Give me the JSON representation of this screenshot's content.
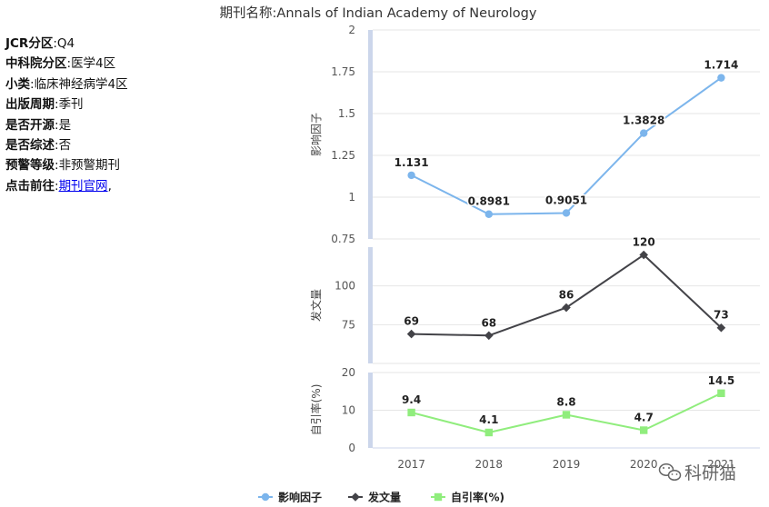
{
  "journal": {
    "title_label": "期刊名称:",
    "title_value": "Annals of Indian Academy of Neurology"
  },
  "info": [
    {
      "key": "JCR分区",
      "value": "Q4"
    },
    {
      "key": "中科院分区",
      "value": "医学4区"
    },
    {
      "key": "小类",
      "value": "临床神经病学4区"
    },
    {
      "key": "出版周期",
      "value": "季刊"
    },
    {
      "key": "是否开源",
      "value": "是"
    },
    {
      "key": "是否综述",
      "value": "否"
    },
    {
      "key": "预警等级",
      "value": "非预警期刊"
    }
  ],
  "link_row": {
    "key": "点击前往",
    "link_text": "期刊官网",
    "suffix": ","
  },
  "watermark": "科研猫",
  "colors": {
    "impact": "#7cb5ec",
    "articles": "#434348",
    "self_cite": "#90ed7d",
    "axis_band": "#ccd6eb",
    "grid": "#e6e6e6"
  },
  "chart_data": [
    {
      "type": "line",
      "categories": [
        "2017",
        "2018",
        "2019",
        "2020",
        "2021"
      ],
      "series": [
        {
          "name": "影响因子",
          "values": [
            1.131,
            0.8981,
            0.9051,
            1.3828,
            1.714
          ],
          "labels": [
            "1.131",
            "0.8981",
            "0.9051",
            "1.3828",
            "1.714"
          ],
          "marker": "circle"
        }
      ],
      "ylabel": "影响因子",
      "ylim": [
        0.75,
        2
      ],
      "yticks": [
        "0.75",
        "1",
        "1.25",
        "1.5",
        "1.75",
        "2"
      ],
      "grid": true
    },
    {
      "type": "line",
      "categories": [
        "2017",
        "2018",
        "2019",
        "2020",
        "2021"
      ],
      "series": [
        {
          "name": "发文量",
          "values": [
            69,
            68,
            86,
            120,
            73
          ],
          "labels": [
            "69",
            "68",
            "86",
            "120",
            "73"
          ],
          "marker": "diamond"
        }
      ],
      "ylabel": "发文量",
      "ylim": [
        50,
        125
      ],
      "yticks": [
        "75",
        "100"
      ],
      "grid": true
    },
    {
      "type": "line",
      "categories": [
        "2017",
        "2018",
        "2019",
        "2020",
        "2021"
      ],
      "series": [
        {
          "name": "自引率(%)",
          "values": [
            9.4,
            4.1,
            8.8,
            4.7,
            14.5
          ],
          "labels": [
            "9.4",
            "4.1",
            "8.8",
            "4.7",
            "14.5"
          ],
          "marker": "square"
        }
      ],
      "ylabel": "自引率(%)",
      "ylim": [
        0,
        20
      ],
      "yticks": [
        "0",
        "10",
        "20"
      ],
      "grid": true
    }
  ],
  "legend": {
    "placement": "bottom-center",
    "items": [
      {
        "name": "影响因子",
        "marker": "circle"
      },
      {
        "name": "发文量",
        "marker": "diamond"
      },
      {
        "name": "自引率(%)",
        "marker": "square"
      }
    ]
  }
}
